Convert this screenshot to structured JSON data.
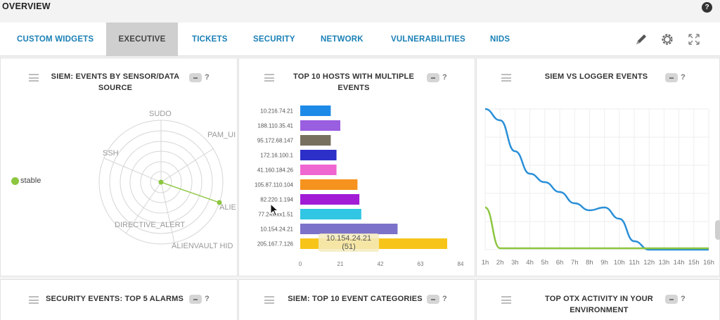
{
  "header": {
    "title": "OVERVIEW",
    "help_label": "?"
  },
  "tabs": [
    {
      "label": "CUSTOM WIDGETS",
      "active": false
    },
    {
      "label": "EXECUTIVE",
      "active": true
    },
    {
      "label": "TICKETS",
      "active": false
    },
    {
      "label": "SECURITY",
      "active": false
    },
    {
      "label": "NETWORK",
      "active": false
    },
    {
      "label": "VULNERABILITIES",
      "active": false
    },
    {
      "label": "NIDS",
      "active": false
    }
  ],
  "toolbar": {
    "icons": [
      "pencil-icon",
      "gear-icon",
      "expand-icon"
    ]
  },
  "widgets": {
    "radar": {
      "title": "SIEM: EVENTS BY SENSOR/DATA SOURCE",
      "help": "?",
      "legend": "stable",
      "legend_color": "#8cc63f",
      "labels": [
        "SUDO",
        "PAM_UI",
        "ALIE",
        "ALIENVAULT HID",
        "DIRECTIVE_ALERT",
        "SSH"
      ]
    },
    "hosts": {
      "title": "TOP 10 HOSTS WITH MULTIPLE EVENTS",
      "help": "?"
    },
    "logger": {
      "title": "SIEM VS LOGGER EVENTS",
      "help": "?"
    },
    "alarms": {
      "title": "SECURITY EVENTS: TOP 5 ALARMS",
      "help": "?"
    },
    "categories": {
      "title": "SIEM: TOP 10 EVENT CATEGORIES",
      "help": "?"
    },
    "otx": {
      "title": "TOP OTX ACTIVITY IN YOUR ENVIRONMENT",
      "help": "?"
    }
  },
  "chart_data": [
    {
      "type": "bar",
      "orientation": "horizontal",
      "title": "TOP 10 HOSTS WITH MULTIPLE EVENTS",
      "categories": [
        "10.216.74.21",
        "188.110.35.41",
        "95.172.68.147",
        "172.16.100.1",
        "41.160.184.26",
        "105.87.110.104",
        "82.220.1.194",
        "77.24x.xx1.51",
        "10.154.24.21",
        "205.167.7.126"
      ],
      "values": [
        16,
        21,
        16,
        19,
        19,
        30,
        31,
        32,
        51,
        77
      ],
      "colors": [
        "#1e8ae8",
        "#9a5ee0",
        "#77705e",
        "#2c30c8",
        "#f066d0",
        "#f6921e",
        "#a21cd6",
        "#31c6e4",
        "#7c72c9",
        "#f7c51a"
      ],
      "xticks": [
        "0",
        "21",
        "42",
        "63",
        "84"
      ],
      "xlim": [
        0,
        84
      ],
      "tooltip": {
        "label": "10.154.24.21",
        "value": "(51)"
      }
    },
    {
      "type": "line",
      "title": "SIEM VS LOGGER EVENTS",
      "x": [
        "1h",
        "2h",
        "3h",
        "4h",
        "5h",
        "6h",
        "7h",
        "8h",
        "9h",
        "10h",
        "11h",
        "12h",
        "13h",
        "14h",
        "15h",
        "16h"
      ],
      "series": [
        {
          "color": "#2a8fd8",
          "values": [
            100,
            92,
            70,
            54,
            48,
            41,
            33,
            28,
            30,
            22,
            6,
            0,
            0,
            0,
            0,
            0
          ]
        },
        {
          "color": "#8cc63f",
          "values": [
            30,
            1,
            1,
            1,
            1,
            1,
            1,
            1,
            1,
            1,
            1,
            1,
            1,
            1,
            1,
            1
          ]
        }
      ],
      "grid": true
    }
  ]
}
